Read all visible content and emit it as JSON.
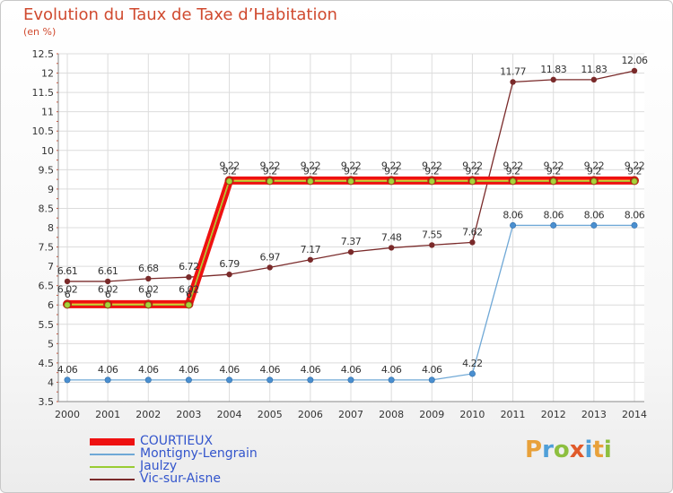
{
  "chart_data": {
    "type": "line",
    "title": "Evolution du Taux de Taxe d’Habitation",
    "subtitle": "(en %)",
    "x": [
      "2000",
      "2001",
      "2002",
      "2003",
      "2004",
      "2005",
      "2006",
      "2007",
      "2008",
      "2009",
      "2010",
      "2011",
      "2012",
      "2013",
      "2014"
    ],
    "ylim": [
      3.5,
      12.5
    ],
    "yticks": [
      "3.5",
      "4",
      "4.5",
      "5",
      "5.5",
      "6",
      "6.5",
      "7",
      "7.5",
      "8",
      "8.5",
      "9",
      "9.5",
      "10",
      "10.5",
      "11",
      "11.5",
      "12",
      "12.5"
    ],
    "grid": true,
    "legend_position": "bottom-left",
    "series": [
      {
        "name": "COURTIEUX",
        "color": "#ee1111",
        "values": [
          6.02,
          6.02,
          6.02,
          6.02,
          9.22,
          9.22,
          9.22,
          9.22,
          9.22,
          9.22,
          9.22,
          9.22,
          9.22,
          9.22,
          9.22
        ],
        "labels": [
          "6.02",
          "6.02",
          "6.02",
          "6.02",
          "9.22",
          "9.22",
          "9.22",
          "9.22",
          "9.22",
          "9.22",
          "9.22",
          "9.22",
          "9.22",
          "9.22",
          "9.22"
        ]
      },
      {
        "name": "Montigny-Lengrain",
        "color": "#6fa8d6",
        "values": [
          4.06,
          4.06,
          4.06,
          4.06,
          4.06,
          4.06,
          4.06,
          4.06,
          4.06,
          4.06,
          4.22,
          8.06,
          8.06,
          8.06,
          8.06
        ],
        "labels": [
          "4.06",
          "4.06",
          "4.06",
          "4.06",
          "4.06",
          "4.06",
          "4.06",
          "4.06",
          "4.06",
          "4.06",
          "4.22",
          "8.06",
          "8.06",
          "8.06",
          "8.06"
        ]
      },
      {
        "name": "Jaulzy",
        "color": "#99cc33",
        "values": [
          6,
          6,
          6,
          6,
          9.2,
          9.2,
          9.2,
          9.2,
          9.2,
          9.2,
          9.2,
          9.2,
          9.2,
          9.2,
          9.2
        ],
        "labels": [
          "6",
          "6",
          "6",
          "6",
          "9.2",
          "9.2",
          "9.2",
          "9.2",
          "9.2",
          "9.2",
          "9.2",
          "9.2",
          "9.2",
          "9.2",
          "9.2"
        ]
      },
      {
        "name": "Vic-sur-Aisne",
        "color": "#7a2a2a",
        "values": [
          6.61,
          6.61,
          6.68,
          6.72,
          6.79,
          6.97,
          7.17,
          7.37,
          7.48,
          7.55,
          7.62,
          11.77,
          11.83,
          11.83,
          12.06
        ],
        "labels": [
          "6.61",
          "6.61",
          "6.68",
          "6.72",
          "6.79",
          "6.97",
          "7.17",
          "7.37",
          "7.48",
          "7.55",
          "7.62",
          "11.77",
          "11.83",
          "11.83",
          "12.06"
        ]
      }
    ]
  },
  "logo": {
    "text": "Proxiti",
    "colors": [
      "#e8a13a",
      "#4f9fd8",
      "#8dbf3f",
      "#e05a2a",
      "#4f9fd8",
      "#e8a13a",
      "#8dbf3f"
    ]
  }
}
